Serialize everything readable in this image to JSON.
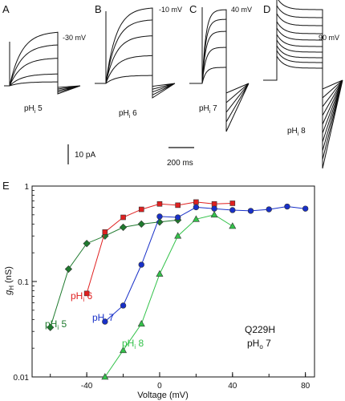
{
  "panels_top": [
    {
      "letter": "A",
      "voltage_label": "-30 mV",
      "ph_label": "pH",
      "ph_sub": "i",
      "ph_value": " 5"
    },
    {
      "letter": "B",
      "voltage_label": "-10 mV",
      "ph_label": "pH",
      "ph_sub": "i",
      "ph_value": " 6"
    },
    {
      "letter": "C",
      "voltage_label": "40 mV",
      "ph_label": "pH",
      "ph_sub": "i",
      "ph_value": " 7"
    },
    {
      "letter": "D",
      "voltage_label": "90 mV",
      "ph_label": "pH",
      "ph_sub": "i",
      "ph_value": " 8"
    }
  ],
  "scalebars": {
    "current": "10 pA",
    "time": "200 ms"
  },
  "colors": {
    "pH5": "#1f7a2e",
    "pH6": "#e02020",
    "pH7": "#1830c8",
    "pH8": "#33c24a",
    "trace": "#111111"
  },
  "chart_data": {
    "panel_letter": "E",
    "type": "scatter",
    "yscale": "log",
    "xlabel": "Voltage (mV)",
    "ylabel": {
      "main": "g",
      "sub": "H",
      "unit": " (nS)"
    },
    "xlim": [
      -70,
      85
    ],
    "ylim": [
      0.01,
      1
    ],
    "xticks": [
      -40,
      0,
      40,
      80
    ],
    "yticks": [
      {
        "value": 0.01,
        "label": "0.01"
      },
      {
        "value": 0.1,
        "label": "0.1"
      },
      {
        "value": 1,
        "label": "1"
      }
    ],
    "annotation": {
      "line1": "Q229H",
      "line2": "pH",
      "line2_sub": "o",
      "line2_value": " 7"
    },
    "series": [
      {
        "name": "pH",
        "sub": "i",
        "value": " 5",
        "color": "#1f7a2e",
        "marker": "diamond",
        "x": [
          -60,
          -50,
          -40,
          -30,
          -20,
          -10,
          0,
          10
        ],
        "y": [
          0.033,
          0.135,
          0.25,
          0.3,
          0.37,
          0.4,
          0.42,
          0.44
        ]
      },
      {
        "name": "pH",
        "sub": "i",
        "value": " 6",
        "color": "#e02020",
        "marker": "square",
        "x": [
          -40,
          -30,
          -20,
          -10,
          0,
          10,
          20,
          30,
          40
        ],
        "y": [
          0.075,
          0.33,
          0.47,
          0.57,
          0.65,
          0.63,
          0.68,
          0.65,
          0.66
        ]
      },
      {
        "name": "pH",
        "sub": "i",
        "value": " 7",
        "color": "#1830c8",
        "marker": "circle",
        "x": [
          -30,
          -20,
          -10,
          0,
          10,
          20,
          30,
          40,
          50,
          60,
          70,
          80
        ],
        "y": [
          0.038,
          0.056,
          0.15,
          0.48,
          0.47,
          0.6,
          0.58,
          0.56,
          0.55,
          0.57,
          0.61,
          0.58
        ]
      },
      {
        "name": "pH",
        "sub": "i",
        "value": " 8",
        "color": "#33c24a",
        "marker": "triangle",
        "x": [
          -30,
          -20,
          -10,
          0,
          10,
          20,
          30,
          40
        ],
        "y": [
          0.01,
          0.019,
          0.036,
          0.12,
          0.3,
          0.45,
          0.5,
          0.38
        ]
      }
    ]
  }
}
